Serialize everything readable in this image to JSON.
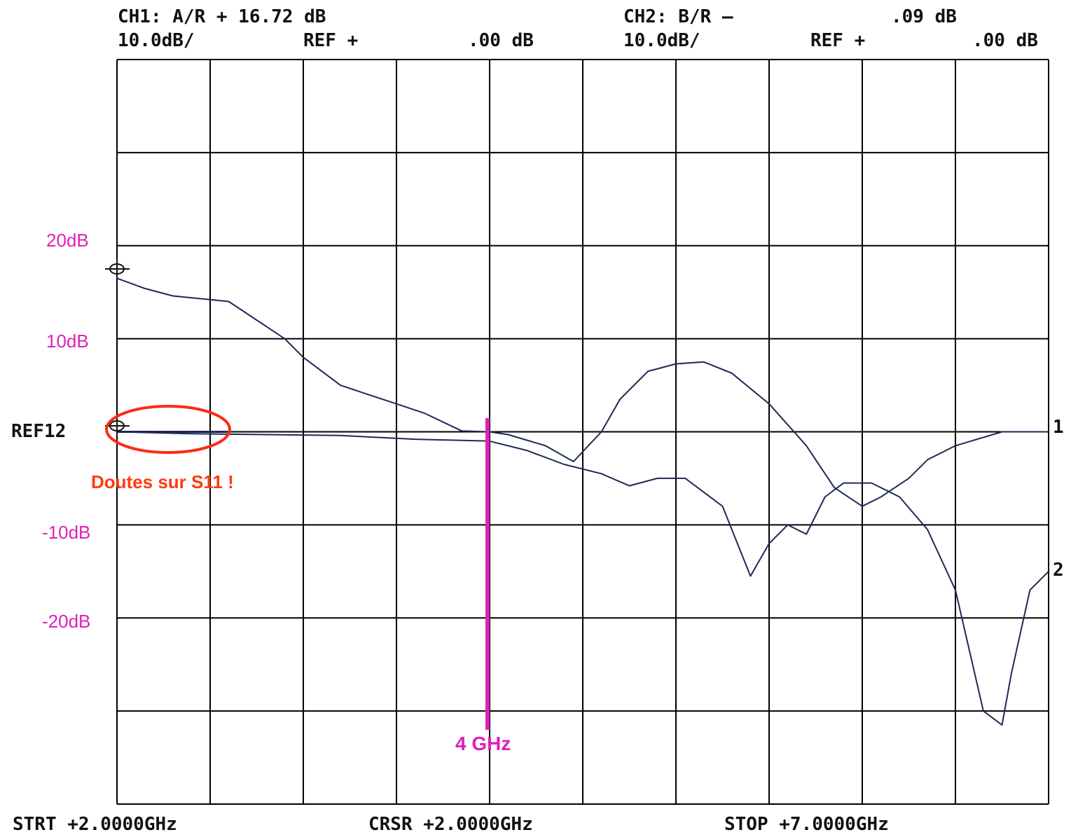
{
  "header": {
    "ch1_label": "CH1: A/R + 16.72 dB",
    "ch1_scale": "10.0dB/",
    "ch1_ref": "REF +",
    "ch1_ref_value": ".00 dB",
    "ch2_label": "CH2: B/R –",
    "ch2_value": ".09 dB",
    "ch2_scale": "10.0dB/",
    "ch2_ref": "REF +",
    "ch2_ref_value": ".00 dB"
  },
  "footer": {
    "start": "STRT +2.0000GHz",
    "cursor": "CRSR +2.0000GHz",
    "stop": "STOP +7.0000GHz"
  },
  "annotations": {
    "y_labels": [
      "20dB",
      "10dB",
      "-10dB",
      "-20dB"
    ],
    "ref_label": "REF12",
    "warning": "Doutes sur S11 !",
    "marker_label": "4 GHz",
    "trace1_id": "1",
    "trace2_id": "2"
  },
  "colors": {
    "grid": "#000000",
    "trace": "#1c2a55",
    "annotation": "#e020b8",
    "warning": "#ff3a10"
  },
  "chart_data": {
    "type": "line",
    "title": "",
    "xlabel": "",
    "ylabel": "",
    "x_unit": "GHz",
    "y_unit": "dB",
    "xlim": [
      2.0,
      7.0
    ],
    "ylim": [
      -40,
      40
    ],
    "grid": true,
    "x_divisions": 10,
    "y_divisions": 8,
    "marker_x": 4.0,
    "series": [
      {
        "name": "1",
        "x": [
          2.0,
          2.15,
          2.3,
          2.5,
          2.6,
          2.75,
          2.9,
          3.0,
          3.2,
          3.35,
          3.5,
          3.65,
          3.85,
          4.0,
          4.1,
          4.3,
          4.45,
          4.6,
          4.7,
          4.85,
          5.0,
          5.15,
          5.3,
          5.5,
          5.7,
          5.85,
          6.0,
          6.1,
          6.25,
          6.35,
          6.5,
          6.75,
          7.0
        ],
        "y": [
          16.5,
          15.4,
          14.6,
          14.2,
          14.0,
          12.0,
          10.0,
          8.0,
          5.0,
          4.0,
          3.0,
          2.0,
          0.1,
          0.0,
          -0.3,
          -1.5,
          -3.2,
          0.0,
          3.5,
          6.5,
          7.3,
          7.5,
          6.3,
          3.0,
          -1.5,
          -6.0,
          -8.0,
          -7.0,
          -5.0,
          -3.0,
          -1.5,
          0.0,
          0.0
        ]
      },
      {
        "name": "2",
        "x": [
          2.0,
          2.4,
          2.8,
          3.2,
          3.6,
          4.0,
          4.2,
          4.4,
          4.6,
          4.75,
          4.9,
          5.05,
          5.25,
          5.4,
          5.5,
          5.6,
          5.7,
          5.8,
          5.9,
          6.05,
          6.2,
          6.35,
          6.5,
          6.65,
          6.75,
          6.8,
          6.9,
          7.0
        ],
        "y": [
          0.0,
          -0.2,
          -0.3,
          -0.4,
          -0.8,
          -1.0,
          -2.0,
          -3.5,
          -4.5,
          -5.8,
          -5.0,
          -5.0,
          -8.0,
          -15.5,
          -12.0,
          -10.0,
          -11.0,
          -7.0,
          -5.5,
          -5.5,
          -7.0,
          -10.5,
          -17.0,
          -30.0,
          -31.5,
          -26.0,
          -17.0,
          -15.0
        ]
      }
    ]
  }
}
